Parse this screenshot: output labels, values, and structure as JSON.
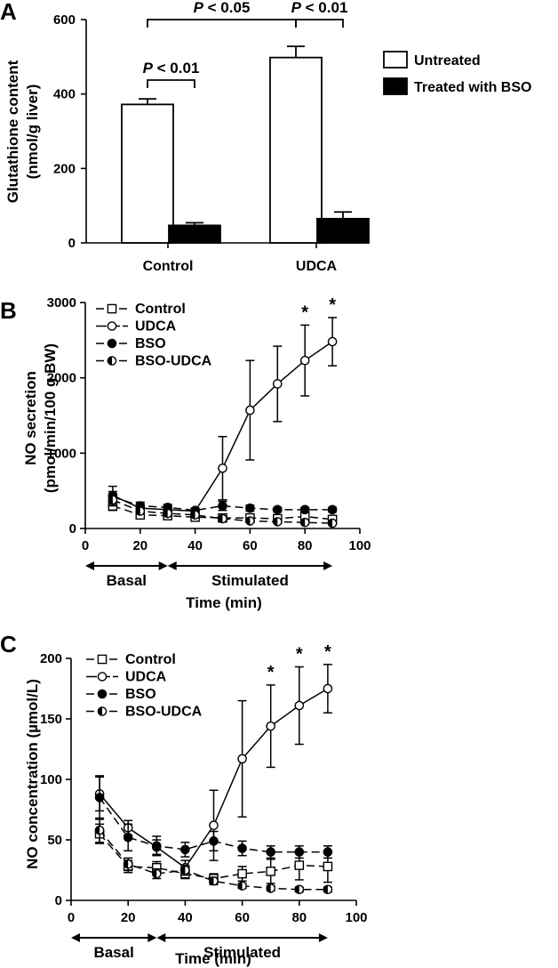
{
  "panels": {
    "A": {
      "letter": "A"
    },
    "B": {
      "letter": "B"
    },
    "C": {
      "letter": "C"
    }
  },
  "chart_data": [
    {
      "panel": "A",
      "type": "bar",
      "ylabel_line1": "Glutathione content",
      "ylabel_line2": "(nmol/g liver)",
      "xlabel": "",
      "ylim": [
        0,
        600
      ],
      "yticks": [
        0,
        200,
        400,
        600
      ],
      "categories": [
        "Control",
        "UDCA"
      ],
      "series": [
        {
          "name": "Untreated",
          "fill": "#ffffff",
          "values": [
            372,
            498
          ],
          "errors": [
            15,
            30
          ]
        },
        {
          "name": "Treated with BSO",
          "fill": "#000000",
          "values": [
            47,
            65
          ],
          "errors": [
            7,
            18
          ]
        }
      ],
      "legend_position": "right",
      "annotations": [
        {
          "text_italic": "P",
          "text": " < 0.01",
          "from": "Control-Untreated",
          "to": "Control-BSO"
        },
        {
          "text_italic": "P",
          "text": " < 0.05",
          "from": "Control-Untreated",
          "to": "UDCA-Untreated"
        },
        {
          "text_italic": "P",
          "text": " < 0.01",
          "from": "UDCA-Untreated",
          "to": "UDCA-BSO"
        }
      ]
    },
    {
      "panel": "B",
      "type": "line",
      "ylabel_line1": "NO secretion",
      "ylabel_line2": "(pmol/min/100 g BW)",
      "xlabel": "Time (min)",
      "xlim": [
        0,
        100
      ],
      "ylim": [
        0,
        3000
      ],
      "xticks": [
        0,
        20,
        40,
        60,
        80,
        100
      ],
      "yticks": [
        0,
        1000,
        2000,
        3000
      ],
      "x": [
        10,
        20,
        30,
        40,
        50,
        60,
        70,
        80,
        90
      ],
      "series": [
        {
          "name": "Control",
          "marker": "square",
          "values": [
            300,
            180,
            170,
            150,
            140,
            140,
            130,
            160,
            120
          ],
          "errors": [
            60,
            40,
            40,
            30,
            50,
            50,
            50,
            50,
            40
          ]
        },
        {
          "name": "UDCA",
          "marker": "open-circle",
          "values": [
            440,
            270,
            250,
            230,
            800,
            1570,
            1920,
            2230,
            2480
          ],
          "errors": [
            120,
            60,
            50,
            40,
            420,
            660,
            500,
            470,
            320
          ]
        },
        {
          "name": "BSO",
          "marker": "filled-circle",
          "values": [
            420,
            300,
            280,
            240,
            300,
            270,
            250,
            250,
            250
          ],
          "errors": [
            70,
            50,
            40,
            30,
            60,
            40,
            30,
            30,
            30
          ]
        },
        {
          "name": "BSO-UDCA",
          "marker": "half-circle",
          "values": [
            380,
            230,
            200,
            180,
            130,
            100,
            90,
            80,
            70
          ],
          "errors": [
            80,
            40,
            30,
            30,
            30,
            20,
            20,
            20,
            20
          ]
        }
      ],
      "significance": [
        {
          "x": 80,
          "label": "*"
        },
        {
          "x": 90,
          "label": "*"
        }
      ],
      "phases": [
        {
          "label": "Basal",
          "from": 0,
          "to": 30
        },
        {
          "label": "Stimulated",
          "from": 30,
          "to": 90
        }
      ],
      "legend_position": "top-left"
    },
    {
      "panel": "C",
      "type": "line",
      "ylabel_line1": "NO concentration (µmol/L)",
      "xlabel": "Time (min)",
      "xlim": [
        0,
        100
      ],
      "ylim": [
        0,
        200
      ],
      "xticks": [
        0,
        20,
        40,
        60,
        80,
        100
      ],
      "yticks": [
        0,
        50,
        100,
        150,
        200
      ],
      "x": [
        10,
        20,
        30,
        40,
        50,
        60,
        70,
        80,
        90
      ],
      "series": [
        {
          "name": "Control",
          "marker": "square",
          "values": [
            55,
            28,
            27,
            22,
            18,
            22,
            24,
            29,
            28
          ],
          "errors": [
            8,
            5,
            5,
            4,
            4,
            6,
            10,
            12,
            13
          ]
        },
        {
          "name": "UDCA",
          "marker": "open-circle",
          "values": [
            88,
            60,
            44,
            27,
            62,
            117,
            144,
            161,
            175
          ],
          "errors": [
            14,
            6,
            6,
            6,
            29,
            48,
            34,
            32,
            20
          ]
        },
        {
          "name": "BSO",
          "marker": "filled-circle",
          "values": [
            85,
            52,
            45,
            42,
            49,
            43,
            40,
            40,
            40
          ],
          "errors": [
            18,
            11,
            8,
            6,
            8,
            6,
            5,
            5,
            5
          ]
        },
        {
          "name": "BSO-UDCA",
          "marker": "half-circle",
          "values": [
            58,
            30,
            22,
            25,
            16,
            12,
            10,
            9,
            9
          ],
          "errors": [
            10,
            5,
            4,
            4,
            3,
            2,
            2,
            2,
            2
          ]
        }
      ],
      "significance": [
        {
          "x": 70,
          "label": "*"
        },
        {
          "x": 80,
          "label": "*"
        },
        {
          "x": 90,
          "label": "*"
        }
      ],
      "phases": [
        {
          "label": "Basal",
          "from": 0,
          "to": 30
        },
        {
          "label": "Stimulated",
          "from": 30,
          "to": 90
        }
      ],
      "legend_position": "top-left"
    }
  ]
}
